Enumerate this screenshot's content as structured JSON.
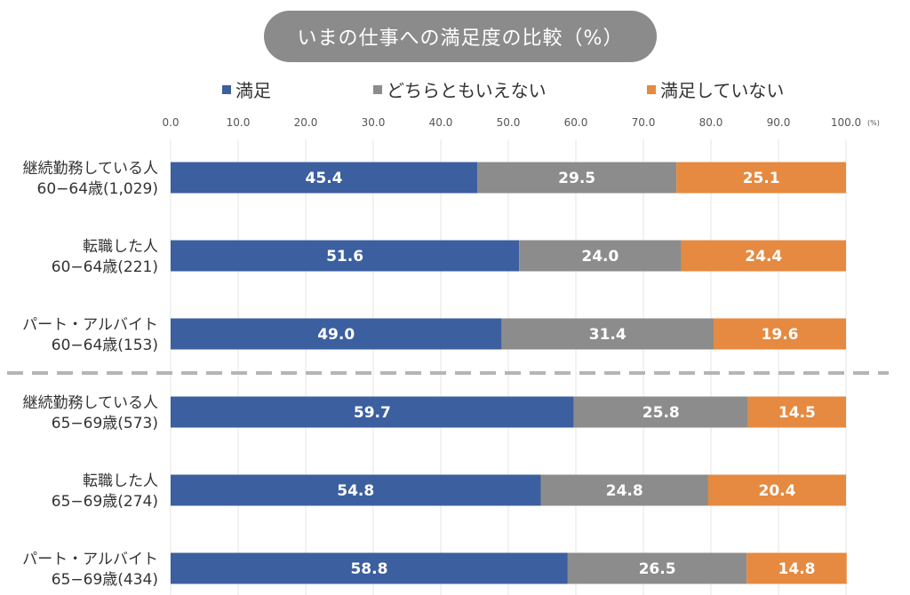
{
  "chart_data": {
    "type": "bar",
    "orientation": "horizontal",
    "stacked": true,
    "title": "いまの仕事への満足度の比較（%）",
    "xlim": [
      0,
      100
    ],
    "xticks": [
      "0.0",
      "10.0",
      "20.0",
      "30.0",
      "40.0",
      "50.0",
      "60.0",
      "70.0",
      "80.0",
      "90.0",
      "100.0"
    ],
    "xunit": "(%)",
    "grid": true,
    "legend_position": "top",
    "categories": [
      [
        "継続勤務している人",
        "60−64歳(1,029)"
      ],
      [
        "転職した人",
        "60−64歳(221)"
      ],
      [
        "パート・アルバイト",
        "60−64歳(153)"
      ],
      [
        "継続勤務している人",
        "65−69歳(573)"
      ],
      [
        "転職した人",
        "65−69歳(274)"
      ],
      [
        "パート・アルバイト",
        "65−69歳(434)"
      ]
    ],
    "series": [
      {
        "name": "満足",
        "color": "#3c5fa0",
        "values": [
          45.4,
          51.6,
          49.0,
          59.7,
          54.8,
          58.8
        ]
      },
      {
        "name": "どちらともいえない",
        "color": "#8c8c8c",
        "values": [
          29.5,
          24.0,
          31.4,
          25.8,
          24.8,
          26.5
        ]
      },
      {
        "name": "満足していない",
        "color": "#e58a40",
        "values": [
          25.1,
          24.4,
          19.6,
          14.5,
          20.4,
          14.8
        ]
      }
    ],
    "separator_after_index": 2
  }
}
